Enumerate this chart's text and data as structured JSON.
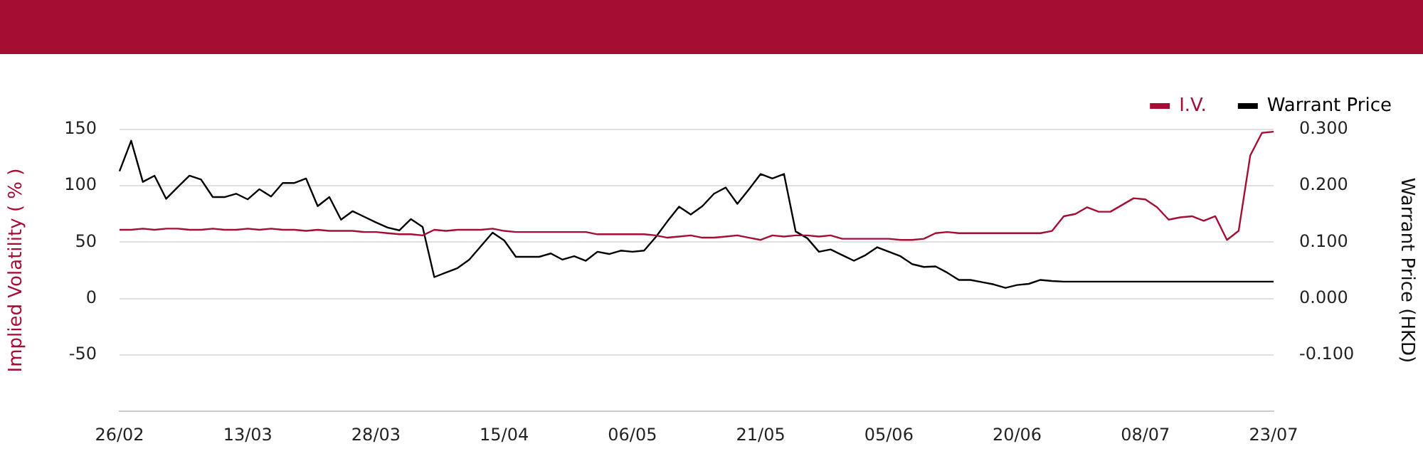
{
  "chart_data": {
    "type": "line",
    "ylabel": "Implied Volatility ( % )",
    "y2label": "Warrant Price (HKD)",
    "categories": [
      "26/02",
      null,
      null,
      null,
      null,
      null,
      null,
      null,
      null,
      null,
      null,
      "13/03",
      null,
      null,
      null,
      null,
      null,
      null,
      null,
      null,
      null,
      null,
      "28/03",
      null,
      null,
      null,
      null,
      null,
      null,
      null,
      null,
      null,
      null,
      "15/04",
      null,
      null,
      null,
      null,
      null,
      null,
      null,
      null,
      null,
      null,
      "06/05",
      null,
      null,
      null,
      null,
      null,
      null,
      null,
      null,
      null,
      null,
      "21/05",
      null,
      null,
      null,
      null,
      null,
      null,
      null,
      null,
      null,
      null,
      "05/06",
      null,
      null,
      null,
      null,
      null,
      null,
      null,
      null,
      null,
      null,
      "20/06",
      null,
      null,
      null,
      null,
      null,
      null,
      null,
      null,
      null,
      null,
      "08/07",
      null,
      null,
      null,
      null,
      null,
      null,
      null,
      null,
      null,
      null,
      "23/07"
    ],
    "series": [
      {
        "name": "I.V.",
        "color": "#a50d34",
        "values": [
          61,
          61,
          62,
          61,
          62,
          62,
          61,
          61,
          62,
          61,
          61,
          62,
          61,
          62,
          61,
          61,
          60,
          61,
          60,
          60,
          60,
          59,
          59,
          58,
          57,
          57,
          56,
          61,
          60,
          61,
          61,
          61,
          62,
          60,
          59,
          59,
          59,
          59,
          59,
          59,
          59,
          57,
          57,
          57,
          57,
          57,
          56,
          54,
          55,
          56,
          54,
          54,
          55,
          56,
          54,
          52,
          56,
          55,
          56,
          56,
          55,
          56,
          53,
          53,
          53,
          53,
          53,
          52,
          52,
          53,
          58,
          59,
          58,
          58,
          58,
          58,
          58,
          58,
          58,
          58,
          60,
          73,
          75,
          81,
          77,
          77,
          83,
          89,
          88,
          81,
          70,
          72,
          73,
          69,
          73,
          52,
          60,
          127,
          147,
          148
        ]
      },
      {
        "name": "Warrant Price",
        "color": "#000000",
        "axis": "y2",
        "values": [
          0.226,
          0.28,
          0.207,
          0.218,
          0.177,
          0.198,
          0.218,
          0.211,
          0.18,
          0.18,
          0.186,
          0.176,
          0.194,
          0.181,
          0.205,
          0.205,
          0.213,
          0.164,
          0.18,
          0.14,
          0.155,
          0.145,
          0.135,
          0.126,
          0.121,
          0.141,
          0.127,
          0.038,
          0.046,
          0.054,
          0.069,
          0.093,
          0.117,
          0.103,
          0.074,
          0.074,
          0.074,
          0.08,
          0.069,
          0.075,
          0.067,
          0.083,
          0.079,
          0.085,
          0.083,
          0.085,
          0.109,
          0.137,
          0.163,
          0.149,
          0.164,
          0.186,
          0.197,
          0.168,
          0.194,
          0.221,
          0.213,
          0.221,
          0.119,
          0.107,
          0.083,
          0.087,
          0.077,
          0.067,
          0.077,
          0.091,
          0.083,
          0.075,
          0.061,
          0.056,
          0.057,
          0.046,
          0.033,
          0.033,
          0.029,
          0.025,
          0.019,
          0.024,
          0.026,
          0.033,
          0.031,
          0.03,
          0.03,
          0.03,
          0.03,
          0.03,
          0.03,
          0.03,
          0.03,
          0.03,
          0.03,
          0.03,
          0.03,
          0.03,
          0.03,
          0.03,
          0.03,
          0.03,
          0.03,
          0.03
        ]
      }
    ],
    "ylim": [
      -100,
      150
    ],
    "yticks": [
      -50,
      0,
      50,
      100,
      150
    ],
    "y2lim": [
      -0.2,
      0.3
    ],
    "y2ticks": [
      {
        "value": -0.1,
        "label": "-0.100"
      },
      {
        "value": 0,
        "label": "0.000"
      },
      {
        "value": 0.1,
        "label": "0.100"
      },
      {
        "value": 0.2,
        "label": "0.200"
      },
      {
        "value": 0.3,
        "label": "0.300"
      }
    ],
    "grid": "y",
    "legend": "top right",
    "marker": "none",
    "line_style": "solid"
  }
}
